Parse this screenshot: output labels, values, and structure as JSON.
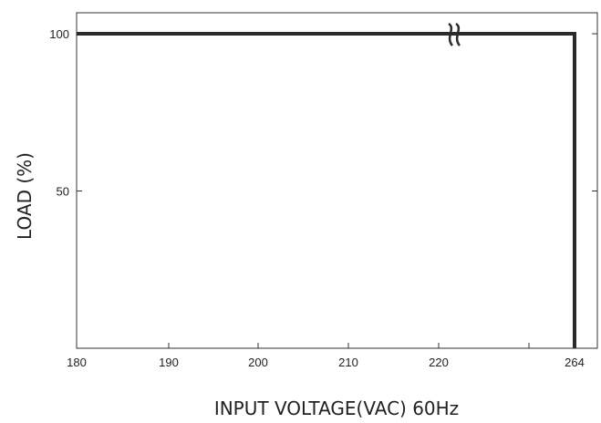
{
  "chart_data": {
    "type": "line",
    "title": "",
    "xlabel": "INPUT VOLTAGE(VAC) 60Hz",
    "ylabel": "LOAD (%)",
    "x_ticks": [
      "180",
      "190",
      "200",
      "210",
      "220",
      "264"
    ],
    "y_ticks": [
      "100",
      "50"
    ],
    "xlim": [
      180,
      264
    ],
    "ylim": [
      0,
      100
    ],
    "axis_break_between": [
      "220",
      "264"
    ],
    "grid": false,
    "series": [
      {
        "points": [
          {
            "x": 180,
            "y": 100
          },
          {
            "x": 264,
            "y": 100
          },
          {
            "x": 264,
            "y": 0
          }
        ]
      }
    ]
  },
  "colors": {
    "line": "#2b2b2b",
    "axis": "#333333",
    "text": "#222222"
  }
}
